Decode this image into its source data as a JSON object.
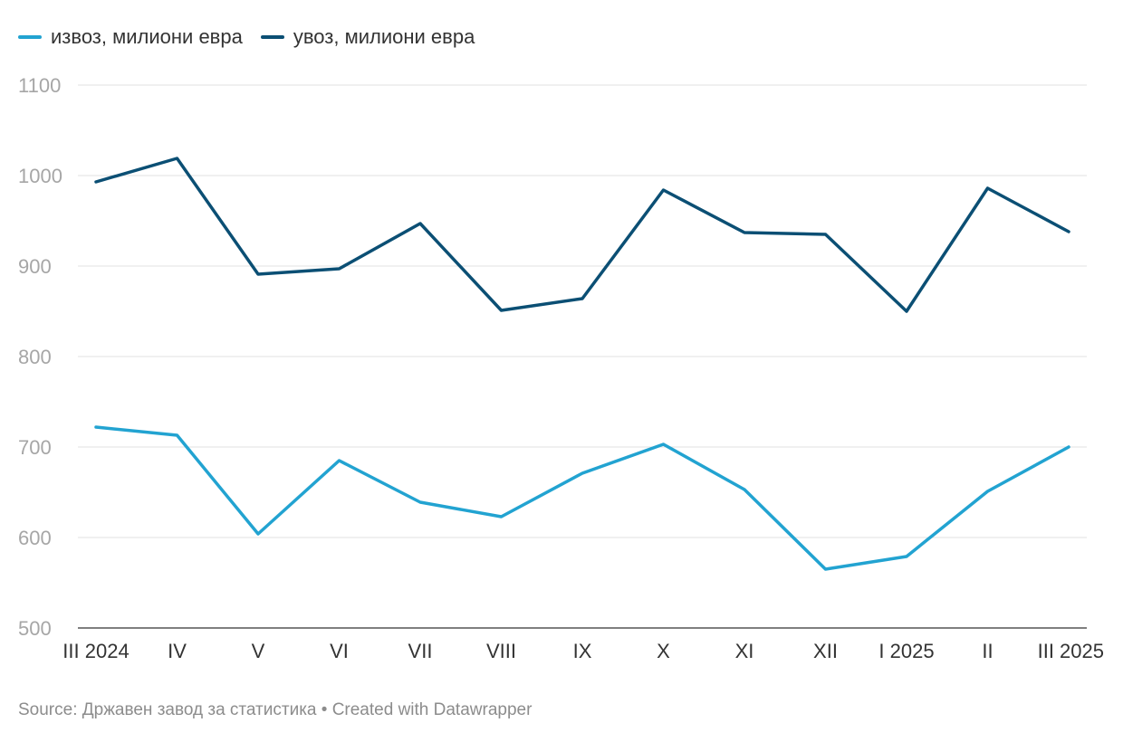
{
  "chart_data": {
    "type": "line",
    "categories": [
      "III 2024",
      "IV",
      "V",
      "VI",
      "VII",
      "VIII",
      "IX",
      "X",
      "XI",
      "XII",
      "I 2025",
      "II",
      "III 2025"
    ],
    "series": [
      {
        "name": "извоз, милиони евра",
        "color": "#22a3d1",
        "values": [
          722,
          713,
          604,
          685,
          639,
          623,
          671,
          703,
          653,
          565,
          579,
          651,
          700
        ]
      },
      {
        "name": "увоз, милиони евра",
        "color": "#0b4f74",
        "values": [
          993,
          1019,
          891,
          897,
          947,
          851,
          864,
          984,
          937,
          935,
          850,
          986,
          938
        ]
      }
    ],
    "ylim": [
      500,
      1100
    ],
    "yticks": [
      500,
      600,
      700,
      800,
      900,
      1000,
      1100
    ],
    "grid": true,
    "legend_position": "top-left"
  },
  "footer": {
    "source": "Source: Државен завод за статистика • Created with Datawrapper"
  }
}
